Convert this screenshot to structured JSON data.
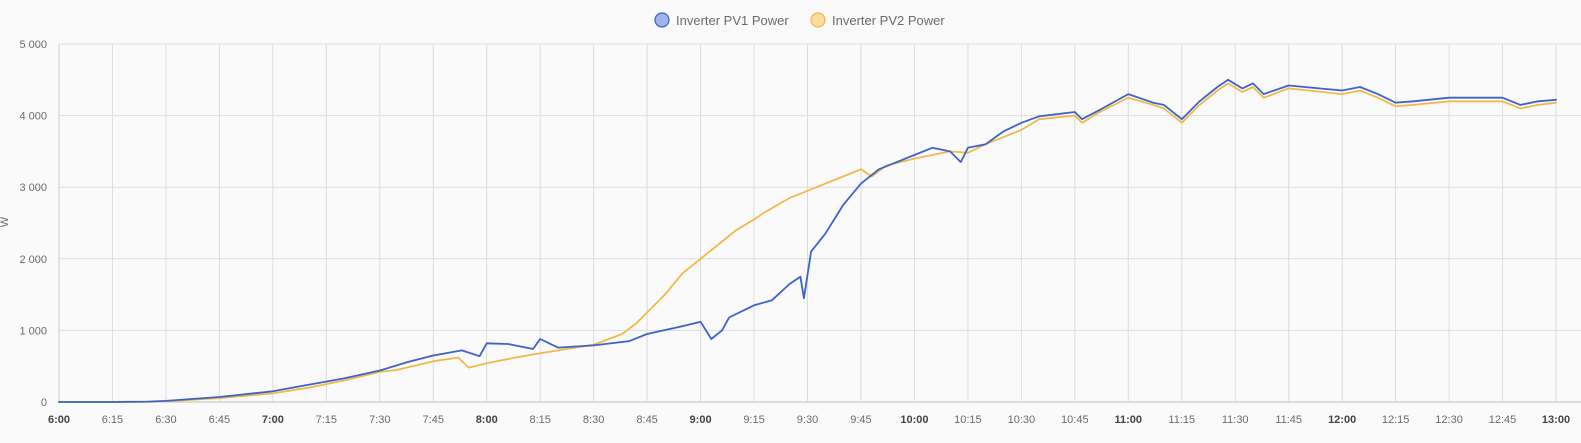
{
  "chart_data": {
    "type": "line",
    "title": "",
    "xlabel": "",
    "ylabel": "W",
    "ylim": [
      0,
      5000
    ],
    "y_ticks": [
      0,
      1000,
      2000,
      3000,
      4000,
      5000
    ],
    "y_tick_labels": [
      "0",
      "1 000",
      "2 000",
      "3 000",
      "4 000",
      "5 000"
    ],
    "x_range": [
      "6:00",
      "13:00"
    ],
    "x_ticks": [
      "6:00",
      "6:15",
      "6:30",
      "6:45",
      "7:00",
      "7:15",
      "7:30",
      "7:45",
      "8:00",
      "8:15",
      "8:30",
      "8:45",
      "9:00",
      "9:15",
      "9:30",
      "9:45",
      "10:00",
      "10:15",
      "10:30",
      "10:45",
      "11:00",
      "11:15",
      "11:30",
      "11:45",
      "12:00",
      "12:15",
      "12:30",
      "12:45",
      "13:00"
    ],
    "x_ticks_bold": [
      "6:00",
      "7:00",
      "8:00",
      "9:00",
      "10:00",
      "11:00",
      "12:00",
      "13:00"
    ],
    "grid": true,
    "legend_position": "top-center",
    "series": [
      {
        "name": "Inverter PV1 Power",
        "color": "#3d63c9",
        "fill_color": "#9fb3e8",
        "points": [
          [
            "6:00",
            0
          ],
          [
            "6:15",
            0
          ],
          [
            "6:25",
            5
          ],
          [
            "6:30",
            15
          ],
          [
            "6:45",
            70
          ],
          [
            "7:00",
            150
          ],
          [
            "7:10",
            240
          ],
          [
            "7:20",
            330
          ],
          [
            "7:30",
            440
          ],
          [
            "7:38",
            560
          ],
          [
            "7:45",
            650
          ],
          [
            "7:53",
            720
          ],
          [
            "7:58",
            640
          ],
          [
            "8:00",
            820
          ],
          [
            "8:06",
            810
          ],
          [
            "8:13",
            740
          ],
          [
            "8:15",
            880
          ],
          [
            "8:20",
            760
          ],
          [
            "8:30",
            790
          ],
          [
            "8:40",
            850
          ],
          [
            "8:45",
            950
          ],
          [
            "8:55",
            1060
          ],
          [
            "9:00",
            1120
          ],
          [
            "9:03",
            880
          ],
          [
            "9:06",
            1000
          ],
          [
            "9:08",
            1180
          ],
          [
            "9:15",
            1350
          ],
          [
            "9:20",
            1420
          ],
          [
            "9:25",
            1650
          ],
          [
            "9:28",
            1750
          ],
          [
            "9:29",
            1450
          ],
          [
            "9:31",
            2100
          ],
          [
            "9:35",
            2350
          ],
          [
            "9:40",
            2750
          ],
          [
            "9:45",
            3050
          ],
          [
            "9:50",
            3250
          ],
          [
            "10:00",
            3450
          ],
          [
            "10:05",
            3550
          ],
          [
            "10:10",
            3500
          ],
          [
            "10:13",
            3350
          ],
          [
            "10:15",
            3550
          ],
          [
            "10:20",
            3600
          ],
          [
            "10:25",
            3780
          ],
          [
            "10:30",
            3900
          ],
          [
            "10:35",
            3990
          ],
          [
            "10:45",
            4050
          ],
          [
            "10:47",
            3950
          ],
          [
            "10:52",
            4080
          ],
          [
            "11:00",
            4300
          ],
          [
            "11:07",
            4180
          ],
          [
            "11:10",
            4150
          ],
          [
            "11:15",
            3950
          ],
          [
            "11:20",
            4200
          ],
          [
            "11:25",
            4400
          ],
          [
            "11:28",
            4500
          ],
          [
            "11:32",
            4380
          ],
          [
            "11:35",
            4450
          ],
          [
            "11:38",
            4300
          ],
          [
            "11:45",
            4420
          ],
          [
            "12:00",
            4350
          ],
          [
            "12:05",
            4400
          ],
          [
            "12:10",
            4300
          ],
          [
            "12:15",
            4180
          ],
          [
            "12:20",
            4200
          ],
          [
            "12:30",
            4250
          ],
          [
            "12:45",
            4250
          ],
          [
            "12:50",
            4150
          ],
          [
            "12:55",
            4200
          ],
          [
            "13:00",
            4220
          ]
        ]
      },
      {
        "name": "Inverter PV2 Power",
        "color": "#f0b94a",
        "fill_color": "#fbdca0",
        "points": [
          [
            "6:00",
            0
          ],
          [
            "6:15",
            0
          ],
          [
            "6:25",
            3
          ],
          [
            "6:30",
            10
          ],
          [
            "6:45",
            55
          ],
          [
            "7:00",
            120
          ],
          [
            "7:10",
            200
          ],
          [
            "7:20",
            300
          ],
          [
            "7:30",
            420
          ],
          [
            "7:35",
            450
          ],
          [
            "7:45",
            570
          ],
          [
            "7:52",
            620
          ],
          [
            "7:55",
            480
          ],
          [
            "8:00",
            540
          ],
          [
            "8:08",
            620
          ],
          [
            "8:15",
            680
          ],
          [
            "8:20",
            720
          ],
          [
            "8:30",
            800
          ],
          [
            "8:38",
            950
          ],
          [
            "8:42",
            1100
          ],
          [
            "8:45",
            1250
          ],
          [
            "8:50",
            1500
          ],
          [
            "8:55",
            1800
          ],
          [
            "9:00",
            2000
          ],
          [
            "9:05",
            2200
          ],
          [
            "9:10",
            2400
          ],
          [
            "9:15",
            2550
          ],
          [
            "9:18",
            2650
          ],
          [
            "9:25",
            2850
          ],
          [
            "9:30",
            2950
          ],
          [
            "9:40",
            3150
          ],
          [
            "9:45",
            3250
          ],
          [
            "9:48",
            3150
          ],
          [
            "9:52",
            3300
          ],
          [
            "10:00",
            3400
          ],
          [
            "10:10",
            3500
          ],
          [
            "10:15",
            3480
          ],
          [
            "10:20",
            3600
          ],
          [
            "10:30",
            3800
          ],
          [
            "10:35",
            3950
          ],
          [
            "10:45",
            4000
          ],
          [
            "10:47",
            3900
          ],
          [
            "10:52",
            4050
          ],
          [
            "11:00",
            4250
          ],
          [
            "11:07",
            4150
          ],
          [
            "11:10",
            4100
          ],
          [
            "11:15",
            3900
          ],
          [
            "11:20",
            4150
          ],
          [
            "11:25",
            4350
          ],
          [
            "11:28",
            4450
          ],
          [
            "11:32",
            4330
          ],
          [
            "11:35",
            4400
          ],
          [
            "11:38",
            4250
          ],
          [
            "11:45",
            4380
          ],
          [
            "12:00",
            4300
          ],
          [
            "12:05",
            4350
          ],
          [
            "12:10",
            4250
          ],
          [
            "12:15",
            4130
          ],
          [
            "12:20",
            4150
          ],
          [
            "12:30",
            4200
          ],
          [
            "12:45",
            4200
          ],
          [
            "12:50",
            4100
          ],
          [
            "12:55",
            4150
          ],
          [
            "13:00",
            4180
          ]
        ]
      }
    ]
  }
}
